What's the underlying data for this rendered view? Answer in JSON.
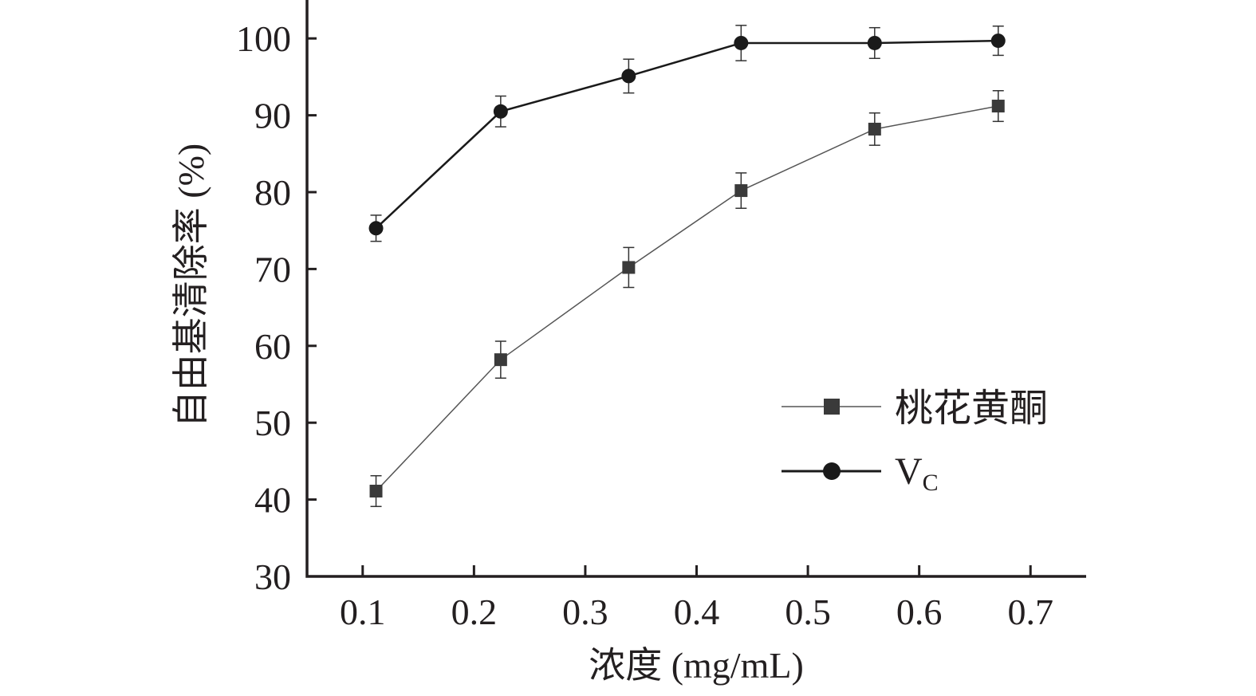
{
  "chart_data": {
    "type": "line",
    "title": "",
    "xlabel": "浓度 (mg/mL)",
    "ylabel": "自由基清除率 (%)",
    "xlim": [
      0.05,
      0.75
    ],
    "ylim": [
      30,
      105
    ],
    "xticks": [
      0.1,
      0.2,
      0.3,
      0.4,
      0.5,
      0.6,
      0.7
    ],
    "xtick_labels": [
      "0.1",
      "0.2",
      "0.3",
      "0.4",
      "0.5",
      "0.6",
      "0.7"
    ],
    "yticks": [
      30,
      40,
      50,
      60,
      70,
      80,
      90,
      100
    ],
    "ytick_labels": [
      "30",
      "40",
      "50",
      "60",
      "70",
      "80",
      "90",
      "100"
    ],
    "grid": false,
    "legend_position": "lower-right",
    "x": [
      0.112,
      0.224,
      0.339,
      0.44,
      0.56,
      0.671
    ],
    "series": [
      {
        "name": "桃花黄酮",
        "marker": "square",
        "color": "#3a3a3a",
        "values": [
          41.1,
          58.2,
          70.2,
          80.2,
          88.2,
          91.2
        ],
        "errors": [
          2.0,
          2.4,
          2.6,
          2.3,
          2.1,
          2.0
        ]
      },
      {
        "name": "V",
        "name_subscript": "C",
        "marker": "circle",
        "color": "#1a1a1a",
        "values": [
          75.3,
          90.5,
          95.1,
          99.4,
          99.4,
          99.7
        ],
        "errors": [
          1.7,
          2.0,
          2.2,
          2.3,
          2.0,
          1.9
        ]
      }
    ]
  }
}
